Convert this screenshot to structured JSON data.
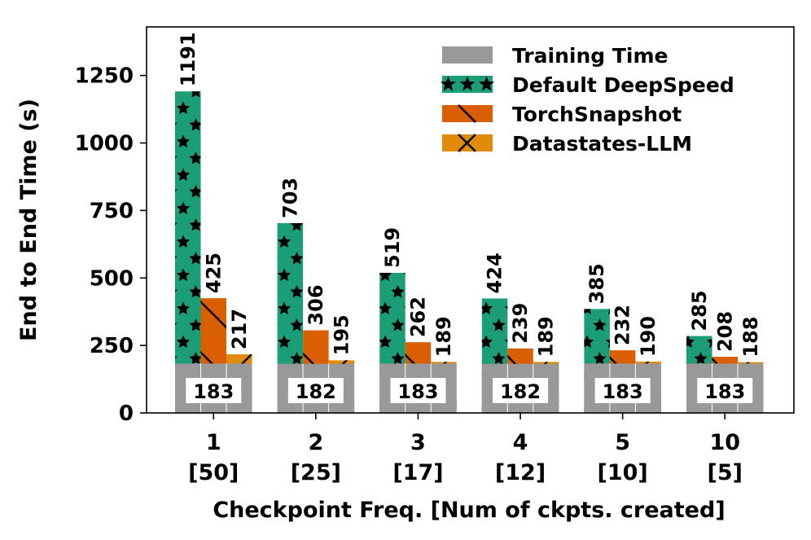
{
  "chart_data": {
    "type": "bar",
    "xlabel": "Checkpoint Freq. [Num of ckpts. created]",
    "ylabel": "End to End Time (s)",
    "ylim": [
      0,
      1430
    ],
    "yticks": [
      0,
      250,
      500,
      750,
      1000,
      1250
    ],
    "categories": [
      {
        "freq": "1",
        "ckpts": "[50]"
      },
      {
        "freq": "2",
        "ckpts": "[25]"
      },
      {
        "freq": "3",
        "ckpts": "[17]"
      },
      {
        "freq": "4",
        "ckpts": "[12]"
      },
      {
        "freq": "5",
        "ckpts": "[10]"
      },
      {
        "freq": "10",
        "ckpts": "[5]"
      }
    ],
    "training_time": [
      183,
      182,
      183,
      182,
      183,
      183
    ],
    "series": [
      {
        "name": "Default DeepSpeed",
        "color": "#1b9e77",
        "hatch": "star",
        "values": [
          1191,
          703,
          519,
          424,
          385,
          285
        ]
      },
      {
        "name": "TorchSnapshot",
        "color": "#d95f02",
        "hatch": "backslash",
        "values": [
          425,
          306,
          262,
          239,
          232,
          208
        ]
      },
      {
        "name": "Datastates-LLM",
        "color": "#e08c0a",
        "hatch": "x",
        "values": [
          217,
          195,
          189,
          189,
          190,
          188
        ]
      }
    ],
    "training_series": {
      "name": "Training Time",
      "color": "#999999"
    },
    "legend_position": "top-right",
    "grid": false
  }
}
